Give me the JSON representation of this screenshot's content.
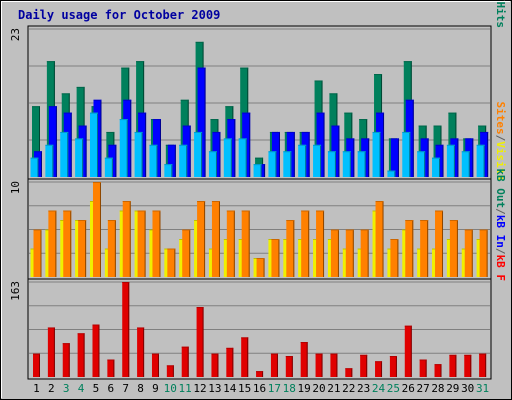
{
  "chart_data": {
    "type": "bar",
    "title": "Daily usage for October 2009",
    "categories": [
      "1",
      "2",
      "3",
      "4",
      "5",
      "6",
      "7",
      "8",
      "9",
      "10",
      "11",
      "12",
      "13",
      "14",
      "15",
      "16",
      "17",
      "18",
      "19",
      "20",
      "21",
      "22",
      "23",
      "24",
      "25",
      "26",
      "27",
      "28",
      "29",
      "30",
      "31"
    ],
    "weekend_days": [
      "3",
      "4",
      "10",
      "11",
      "17",
      "18",
      "24",
      "25",
      "31"
    ],
    "panels": [
      {
        "name": "pages-files-hits",
        "ymax_label": "23",
        "ylim": [
          0,
          23
        ],
        "axis_labels": [
          {
            "text": "Hits",
            "color": "#00805c"
          },
          {
            "text": "Files",
            "color": "#0000ff"
          },
          {
            "text": "Pages",
            "color": "#00c0ff"
          }
        ],
        "series": [
          {
            "name": "Hits",
            "color": "#00805c",
            "values": [
              11,
              18,
              13,
              14,
              11,
              7,
              17,
              18,
              9,
              5,
              12,
              21,
              9,
              11,
              17,
              3,
              7,
              7,
              7,
              15,
              13,
              10,
              9,
              16,
              6,
              18,
              8,
              8,
              10,
              6,
              8
            ]
          },
          {
            "name": "Files",
            "color": "#0000ff",
            "values": [
              4,
              11,
              10,
              8,
              12,
              5,
              12,
              10,
              9,
              5,
              8,
              17,
              7,
              9,
              10,
              2,
              7,
              7,
              7,
              10,
              8,
              6,
              6,
              10,
              6,
              12,
              6,
              5,
              6,
              6,
              7
            ]
          },
          {
            "name": "Pages",
            "color": "#00c0ff",
            "values": [
              3,
              5,
              7,
              6,
              10,
              3,
              9,
              7,
              5,
              2,
              5,
              7,
              4,
              6,
              6,
              2,
              4,
              4,
              5,
              5,
              4,
              4,
              4,
              7,
              1,
              7,
              4,
              3,
              5,
              4,
              5
            ]
          }
        ]
      },
      {
        "name": "visits-sites",
        "ymax_label": "10",
        "ylim": [
          0,
          10
        ],
        "axis_labels": [
          {
            "text": "Visits",
            "color": "#f0f000"
          },
          {
            "text": "/",
            "color": "#606060"
          },
          {
            "text": "Sites",
            "color": "#ff8000"
          }
        ],
        "series": [
          {
            "name": "Visits",
            "color": "#f0f000",
            "values": [
              3,
              5,
              6,
              6,
              8,
              3,
              7,
              7,
              5,
              3,
              4,
              6,
              3,
              4,
              4,
              2,
              4,
              4,
              4,
              4,
              4,
              3,
              3,
              7,
              3,
              5,
              3,
              3,
              4,
              3,
              4
            ]
          },
          {
            "name": "Sites",
            "color": "#ff8000",
            "values": [
              5,
              7,
              7,
              6,
              10,
              6,
              8,
              7,
              7,
              3,
              5,
              8,
              8,
              7,
              7,
              2,
              4,
              6,
              7,
              7,
              5,
              5,
              5,
              8,
              4,
              6,
              6,
              7,
              6,
              5,
              5
            ]
          }
        ]
      },
      {
        "name": "kbytes",
        "ymax_label": "163",
        "ylim": [
          0,
          163
        ],
        "axis_labels": [
          {
            "text": "kB F",
            "color": "#ff0000"
          },
          {
            "text": "/",
            "color": "#606060"
          },
          {
            "text": "kB In",
            "color": "#0000ff"
          },
          {
            "text": "/",
            "color": "#606060"
          },
          {
            "text": "kB Out",
            "color": "#00805c"
          }
        ],
        "series": [
          {
            "name": "kB F",
            "color": "#e00000",
            "values": [
              40,
              85,
              58,
              75,
              90,
              30,
              163,
              85,
              40,
              20,
              52,
              120,
              40,
              50,
              68,
              10,
              40,
              36,
              60,
              40,
              40,
              15,
              38,
              27,
              36,
              88,
              30,
              22,
              38,
              38,
              40
            ]
          }
        ]
      }
    ]
  }
}
